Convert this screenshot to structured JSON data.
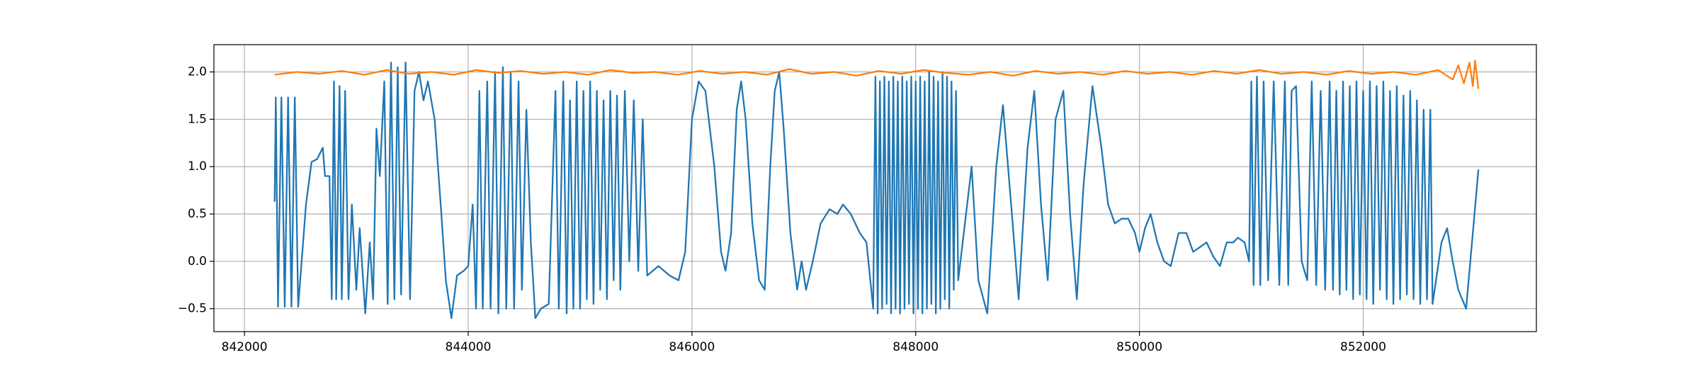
{
  "chart_data": {
    "type": "line",
    "xlim": [
      841727,
      853548
    ],
    "ylim": [
      -0.742,
      2.288
    ],
    "xticks": [
      842000,
      844000,
      846000,
      848000,
      850000,
      852000
    ],
    "yticks": [
      {
        "value": -0.5,
        "label": "−0.5"
      },
      {
        "value": 0.0,
        "label": "0.0"
      },
      0.5,
      {
        "value": 1.0,
        "label": "1.0"
      },
      1.5,
      {
        "value": 2.0,
        "label": "2.0"
      }
    ],
    "grid": true,
    "series": [
      {
        "color": "#1f77b4",
        "x": [
          842270,
          842280,
          842300,
          842330,
          842360,
          842390,
          842420,
          842450,
          842480,
          842550,
          842600,
          842650,
          842700,
          842720,
          842760,
          842780,
          842800,
          842820,
          842850,
          842870,
          842900,
          842930,
          842960,
          843000,
          843030,
          843080,
          843120,
          843150,
          843180,
          843210,
          843250,
          843280,
          843310,
          843340,
          843370,
          843400,
          843440,
          843480,
          843520,
          843560,
          843600,
          843640,
          843700,
          843760,
          843800,
          843850,
          843900,
          843960,
          844000,
          844040,
          844070,
          844100,
          844130,
          844170,
          844200,
          844240,
          844270,
          844310,
          844340,
          844380,
          844410,
          844450,
          844480,
          844520,
          844560,
          844600,
          844650,
          844720,
          844780,
          844810,
          844850,
          844880,
          844910,
          844940,
          844970,
          845000,
          845030,
          845060,
          845090,
          845120,
          845150,
          845180,
          845210,
          845240,
          845270,
          845300,
          845330,
          845360,
          845400,
          845440,
          845480,
          845520,
          845560,
          845600,
          845700,
          845800,
          845880,
          845940,
          846000,
          846060,
          846120,
          846200,
          846260,
          846300,
          846350,
          846400,
          846440,
          846480,
          846540,
          846600,
          846650,
          846700,
          846740,
          846780,
          846820,
          846880,
          846940,
          846980,
          847020,
          847080,
          847150,
          847230,
          847300,
          847350,
          847420,
          847500,
          847560,
          847620,
          847640,
          847660,
          847680,
          847700,
          847720,
          847740,
          847760,
          847780,
          847800,
          847820,
          847840,
          847860,
          847880,
          847900,
          847920,
          847940,
          847960,
          847980,
          848000,
          848020,
          848040,
          848060,
          848080,
          848100,
          848120,
          848140,
          848160,
          848180,
          848200,
          848220,
          848240,
          848260,
          848280,
          848300,
          848320,
          848340,
          848360,
          848380,
          848500,
          848560,
          848640,
          848720,
          848780,
          848860,
          848920,
          849000,
          849060,
          849120,
          849180,
          849250,
          849320,
          849380,
          849440,
          849500,
          849580,
          849660,
          849720,
          849780,
          849840,
          849900,
          849960,
          850000,
          850050,
          850100,
          850160,
          850220,
          850280,
          850350,
          850420,
          850480,
          850540,
          850600,
          850660,
          850720,
          850780,
          850840,
          850880,
          850940,
          850980,
          851000,
          851020,
          851050,
          851080,
          851110,
          851150,
          851200,
          851250,
          851300,
          851330,
          851360,
          851400,
          851450,
          851500,
          851540,
          851580,
          851620,
          851660,
          851700,
          851730,
          851760,
          851790,
          851820,
          851850,
          851880,
          851910,
          851940,
          851970,
          852000,
          852030,
          852060,
          852090,
          852120,
          852150,
          852180,
          852210,
          852240,
          852270,
          852300,
          852330,
          852360,
          852390,
          852420,
          852450,
          852480,
          852510,
          852540,
          852570,
          852600,
          852620,
          852700,
          852750,
          852800,
          852850,
          852920,
          852980,
          853030
        ],
        "values": [
          0.63,
          1.73,
          -0.48,
          1.73,
          -0.48,
          1.73,
          -0.48,
          1.73,
          -0.48,
          0.6,
          1.05,
          1.08,
          1.2,
          0.9,
          0.9,
          -0.4,
          1.9,
          -0.4,
          1.85,
          -0.4,
          1.8,
          -0.4,
          0.6,
          -0.3,
          0.35,
          -0.55,
          0.2,
          -0.4,
          1.4,
          0.9,
          1.9,
          -0.45,
          2.1,
          -0.4,
          2.05,
          -0.35,
          2.1,
          -0.4,
          1.8,
          2.0,
          1.7,
          1.9,
          1.5,
          0.5,
          -0.2,
          -0.6,
          -0.15,
          -0.1,
          -0.05,
          0.6,
          -0.5,
          1.8,
          -0.5,
          1.9,
          -0.5,
          2.0,
          -0.55,
          2.05,
          -0.5,
          2.0,
          -0.5,
          1.9,
          -0.3,
          1.6,
          0.2,
          -0.6,
          -0.5,
          -0.45,
          1.8,
          -0.5,
          1.9,
          -0.55,
          1.7,
          -0.5,
          1.9,
          -0.5,
          1.8,
          -0.4,
          1.9,
          -0.45,
          1.8,
          -0.3,
          1.7,
          -0.4,
          1.8,
          -0.2,
          1.75,
          -0.3,
          1.8,
          0.0,
          1.7,
          -0.1,
          1.5,
          -0.15,
          -0.05,
          -0.15,
          -0.2,
          0.1,
          1.5,
          1.9,
          1.8,
          1.0,
          0.1,
          -0.1,
          0.3,
          1.6,
          1.9,
          1.5,
          0.4,
          -0.2,
          -0.3,
          1.0,
          1.8,
          2.0,
          1.4,
          0.3,
          -0.3,
          0.0,
          -0.3,
          0.0,
          0.4,
          0.55,
          0.5,
          0.6,
          0.5,
          0.3,
          0.2,
          -0.5,
          1.95,
          -0.55,
          1.9,
          -0.5,
          1.95,
          -0.45,
          1.9,
          -0.55,
          1.95,
          -0.5,
          1.9,
          -0.55,
          1.95,
          -0.5,
          1.9,
          -0.45,
          1.95,
          -0.55,
          1.9,
          -0.5,
          1.95,
          -0.55,
          1.9,
          -0.5,
          2.0,
          -0.45,
          1.95,
          -0.55,
          1.9,
          -0.5,
          2.0,
          -0.4,
          1.95,
          -0.5,
          1.9,
          -0.3,
          1.8,
          -0.2,
          1.0,
          -0.2,
          -0.55,
          1.0,
          1.65,
          0.5,
          -0.4,
          1.2,
          1.8,
          0.6,
          -0.2,
          1.5,
          1.8,
          0.5,
          -0.4,
          0.8,
          1.85,
          1.2,
          0.6,
          0.4,
          0.45,
          0.45,
          0.3,
          0.1,
          0.35,
          0.5,
          0.2,
          0.0,
          -0.05,
          0.3,
          0.3,
          0.1,
          0.15,
          0.2,
          0.05,
          -0.05,
          0.2,
          0.2,
          0.25,
          0.2,
          0.0,
          1.9,
          -0.25,
          1.95,
          -0.25,
          1.9,
          -0.2,
          1.9,
          -0.25,
          1.9,
          -0.25,
          1.8,
          1.85,
          0.0,
          -0.2,
          1.9,
          -0.25,
          1.8,
          -0.3,
          1.9,
          -0.3,
          1.8,
          -0.35,
          1.9,
          -0.3,
          1.85,
          -0.4,
          1.9,
          -0.35,
          1.8,
          -0.4,
          1.9,
          -0.45,
          1.85,
          -0.3,
          1.9,
          -0.4,
          1.8,
          -0.45,
          1.85,
          -0.4,
          1.75,
          -0.35,
          1.8,
          -0.4,
          1.7,
          -0.45,
          1.6,
          -0.4,
          1.6,
          -0.45,
          0.2,
          0.35,
          0.0,
          -0.3,
          -0.5,
          0.3,
          0.97
        ]
      },
      {
        "color": "#ff7f0e",
        "x": [
          842270,
          842470,
          842670,
          842870,
          843070,
          843270,
          843470,
          843670,
          843870,
          844070,
          844270,
          844470,
          844670,
          844870,
          845070,
          845270,
          845470,
          845670,
          845870,
          846070,
          846270,
          846470,
          846670,
          846870,
          847070,
          847270,
          847470,
          847670,
          847870,
          848070,
          848270,
          848470,
          848670,
          848870,
          849070,
          849270,
          849470,
          849670,
          849870,
          850070,
          850270,
          850470,
          850670,
          850870,
          851070,
          851270,
          851470,
          851670,
          851870,
          852070,
          852270,
          852470,
          852670,
          852800,
          852850,
          852900,
          852950,
          852980,
          853000,
          853030
        ],
        "values": [
          1.97,
          2.0,
          1.98,
          2.01,
          1.97,
          2.02,
          1.98,
          2.0,
          1.97,
          2.02,
          1.99,
          2.01,
          1.98,
          2.0,
          1.97,
          2.02,
          1.99,
          2.0,
          1.97,
          2.01,
          1.98,
          2.0,
          1.97,
          2.03,
          1.98,
          2.0,
          1.96,
          2.01,
          1.98,
          2.02,
          1.99,
          1.97,
          2.0,
          1.96,
          2.01,
          1.98,
          2.0,
          1.97,
          2.01,
          1.98,
          2.0,
          1.97,
          2.01,
          1.98,
          2.02,
          1.98,
          2.0,
          1.97,
          2.01,
          1.98,
          2.0,
          1.97,
          2.02,
          1.92,
          2.07,
          1.88,
          2.1,
          1.85,
          2.12,
          1.82
        ]
      }
    ]
  }
}
